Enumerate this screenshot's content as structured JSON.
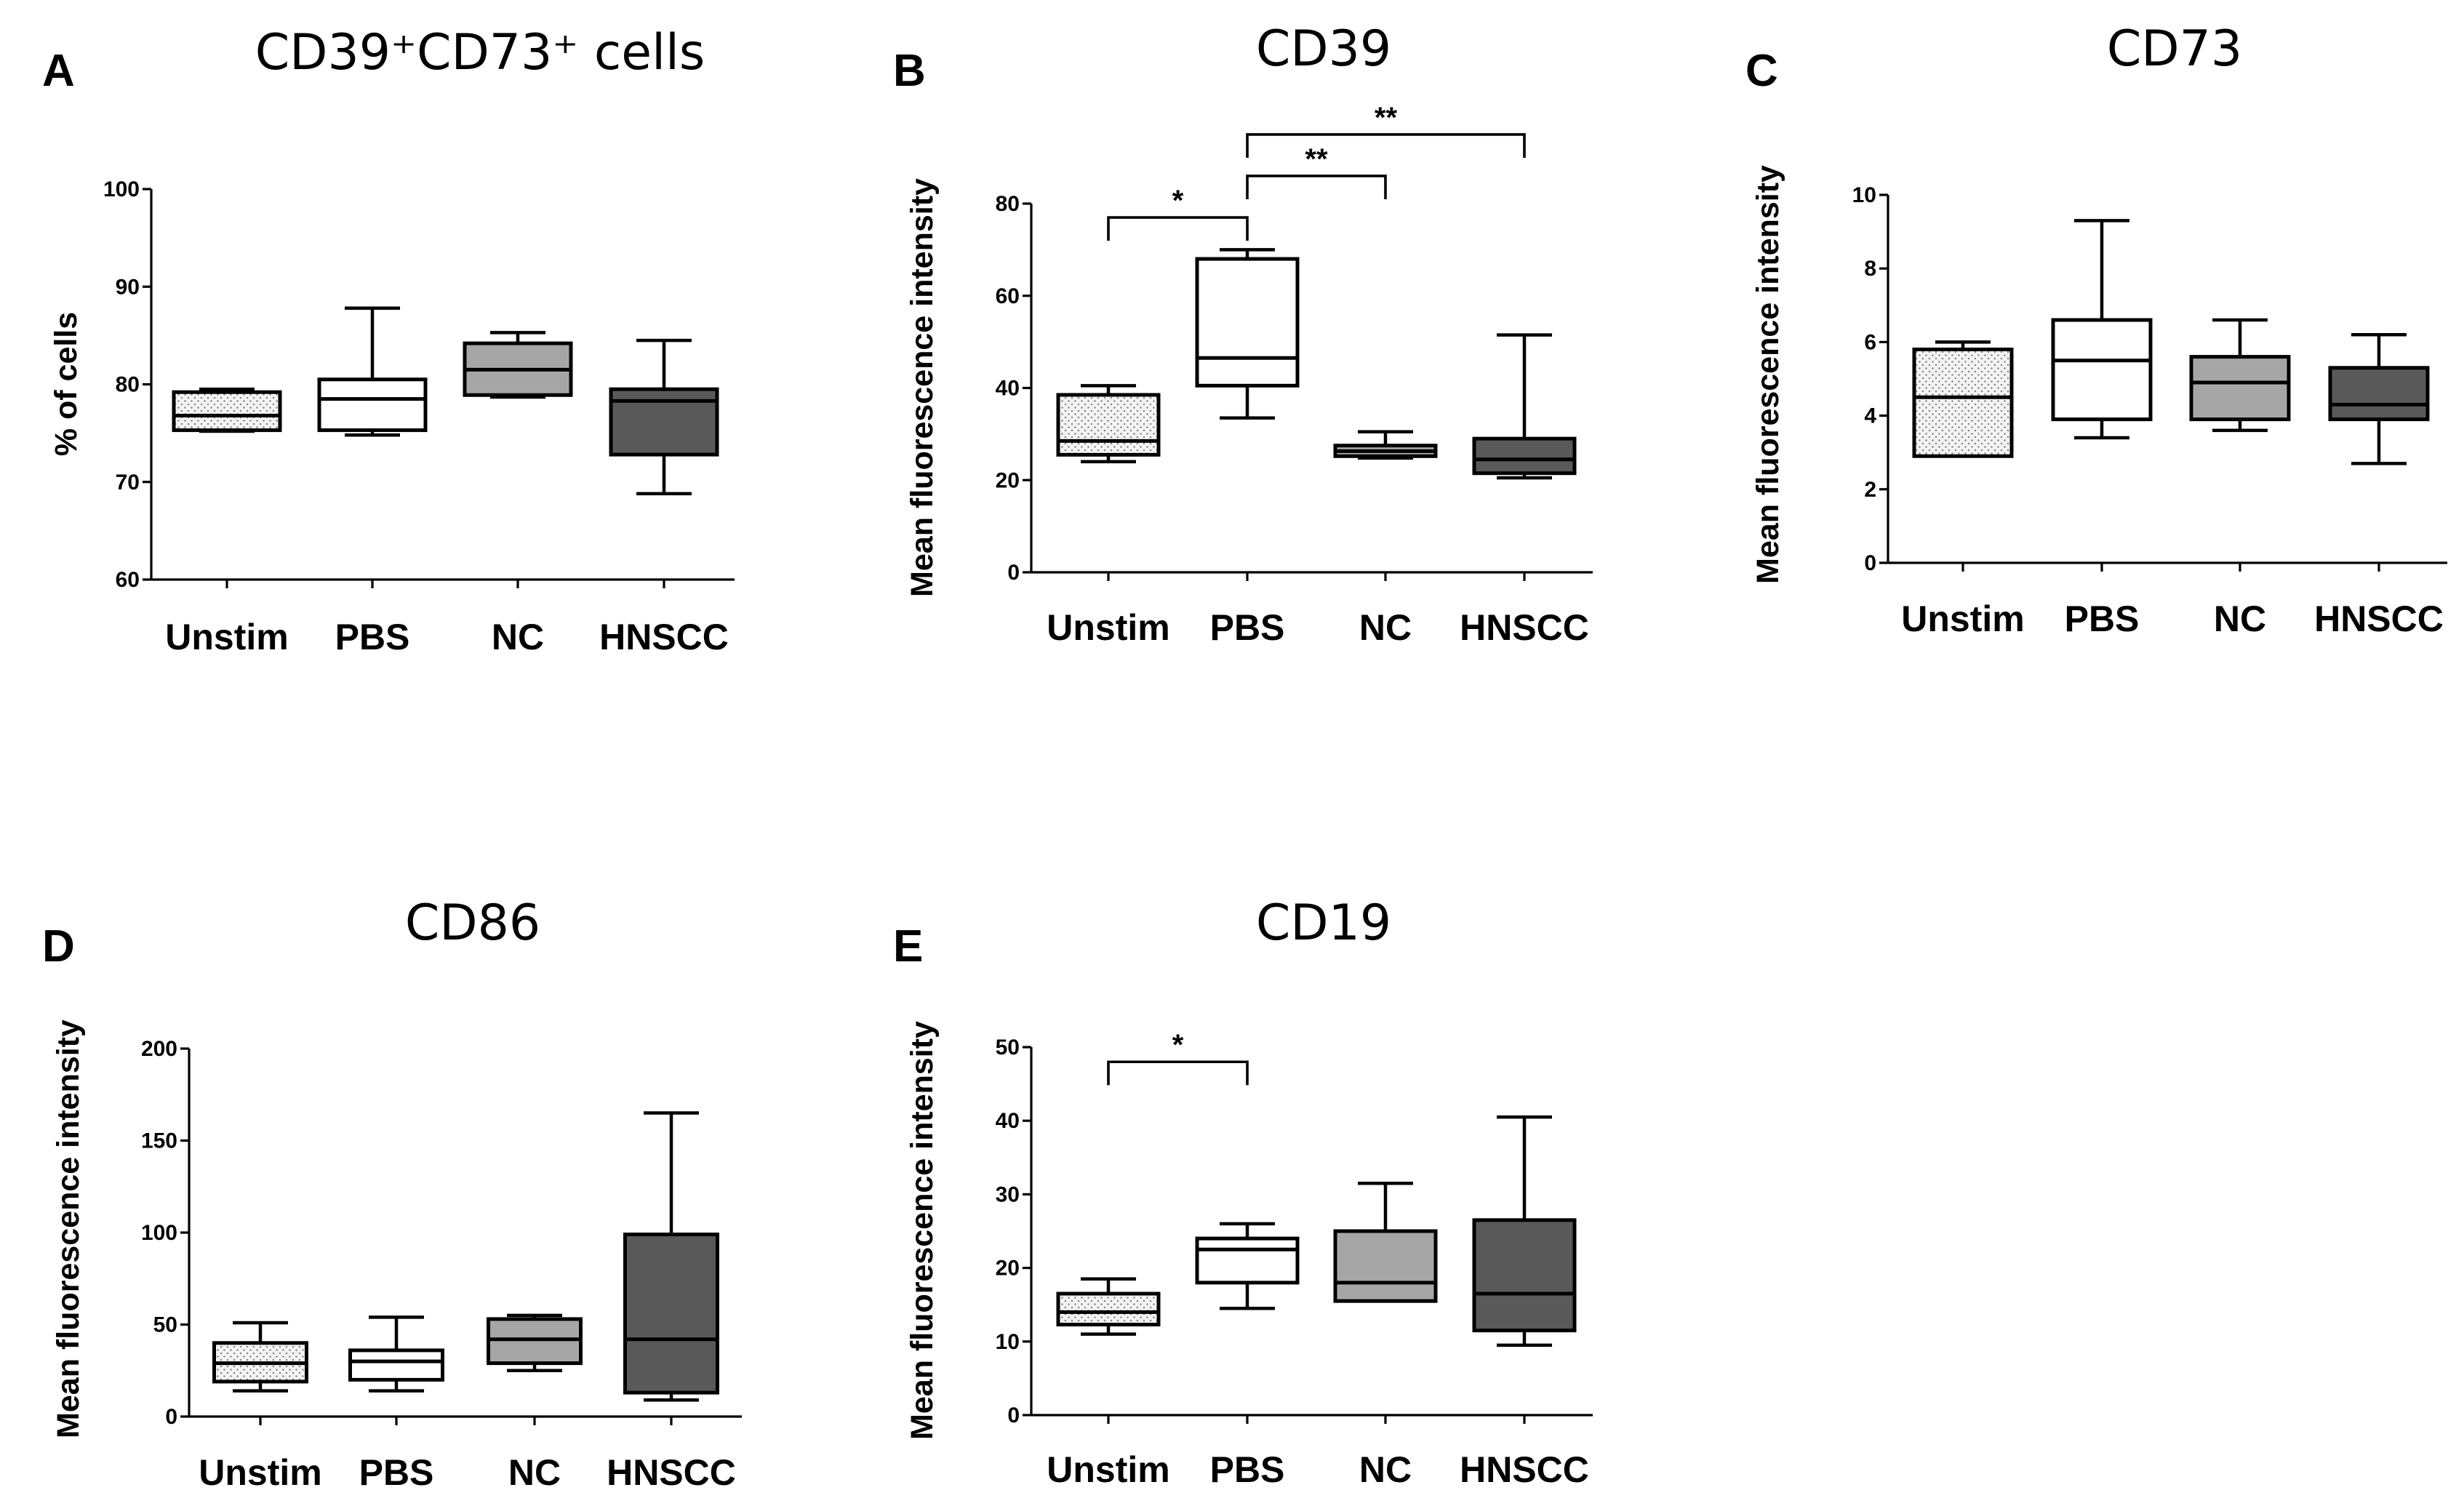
{
  "fill_colors": {
    "Unstim": "dotted",
    "PBS": "#ffffff",
    "NC": "#a6a6a6",
    "HNSCC": "#595959"
  },
  "chart_data": [
    {
      "type": "box",
      "panel": "A",
      "title": "CD39⁺CD73⁺ cells",
      "ylabel": "% of cells",
      "ylim": [
        60,
        100
      ],
      "yticks": [
        60,
        70,
        80,
        90,
        100
      ],
      "categories": [
        "Unstim",
        "PBS",
        "NC",
        "HNSCC"
      ],
      "boxes": [
        {
          "min": 75.2,
          "q1": 75.3,
          "median": 76.8,
          "q3": 79.2,
          "max": 79.5
        },
        {
          "min": 74.8,
          "q1": 75.3,
          "median": 78.5,
          "q3": 80.5,
          "max": 87.8
        },
        {
          "min": 78.7,
          "q1": 78.9,
          "median": 81.5,
          "q3": 84.2,
          "max": 85.3
        },
        {
          "min": 68.8,
          "q1": 72.8,
          "median": 78.3,
          "q3": 79.5,
          "max": 84.5
        }
      ],
      "significance": []
    },
    {
      "type": "box",
      "panel": "B",
      "title": "CD39",
      "ylabel": "Mean fluorescence intensity",
      "ylim": [
        0,
        80
      ],
      "yticks": [
        0,
        20,
        40,
        60,
        80
      ],
      "categories": [
        "Unstim",
        "PBS",
        "NC",
        "HNSCC"
      ],
      "boxes": [
        {
          "min": 24.0,
          "q1": 25.5,
          "median": 28.5,
          "q3": 38.5,
          "max": 40.5
        },
        {
          "min": 33.5,
          "q1": 40.5,
          "median": 46.5,
          "q3": 68.0,
          "max": 70.0
        },
        {
          "min": 24.8,
          "q1": 25.2,
          "median": 26.3,
          "q3": 27.5,
          "max": 30.5
        },
        {
          "min": 20.5,
          "q1": 21.5,
          "median": 24.5,
          "q3": 29.0,
          "max": 51.5
        }
      ],
      "significance": [
        {
          "from": 0,
          "to": 1,
          "label": "*",
          "level": 77
        },
        {
          "from": 1,
          "to": 2,
          "label": "**",
          "level": 86
        },
        {
          "from": 1,
          "to": 3,
          "label": "**",
          "level": 95
        }
      ]
    },
    {
      "type": "box",
      "panel": "C",
      "title": "CD73",
      "ylabel": "Mean fluorescence intensity",
      "ylim": [
        0,
        10
      ],
      "yticks": [
        0,
        2,
        4,
        6,
        8,
        10
      ],
      "categories": [
        "Unstim",
        "PBS",
        "NC",
        "HNSCC"
      ],
      "boxes": [
        {
          "min": 2.9,
          "q1": 2.9,
          "median": 4.5,
          "q3": 5.8,
          "max": 6.0
        },
        {
          "min": 3.4,
          "q1": 3.9,
          "median": 5.5,
          "q3": 6.6,
          "max": 9.3
        },
        {
          "min": 3.6,
          "q1": 3.9,
          "median": 4.9,
          "q3": 5.6,
          "max": 6.6
        },
        {
          "min": 2.7,
          "q1": 3.9,
          "median": 4.3,
          "q3": 5.3,
          "max": 6.2
        }
      ],
      "significance": []
    },
    {
      "type": "box",
      "panel": "D",
      "title": "CD86",
      "ylabel": "Mean fluorescence intensity",
      "ylim": [
        0,
        200
      ],
      "yticks": [
        0,
        50,
        100,
        150,
        200
      ],
      "categories": [
        "Unstim",
        "PBS",
        "NC",
        "HNSCC"
      ],
      "boxes": [
        {
          "min": 14,
          "q1": 19,
          "median": 29,
          "q3": 40,
          "max": 51
        },
        {
          "min": 14,
          "q1": 20,
          "median": 30,
          "q3": 36,
          "max": 54
        },
        {
          "min": 25,
          "q1": 29,
          "median": 42,
          "q3": 53,
          "max": 55
        },
        {
          "min": 9,
          "q1": 13,
          "median": 42,
          "q3": 99,
          "max": 165
        }
      ],
      "significance": []
    },
    {
      "type": "box",
      "panel": "E",
      "title": "CD19",
      "ylabel": "Mean fluorescence intensity",
      "ylim": [
        0,
        50
      ],
      "yticks": [
        0,
        10,
        20,
        30,
        40,
        50
      ],
      "categories": [
        "Unstim",
        "PBS",
        "NC",
        "HNSCC"
      ],
      "boxes": [
        {
          "min": 11.0,
          "q1": 12.3,
          "median": 14.0,
          "q3": 16.5,
          "max": 18.5
        },
        {
          "min": 14.5,
          "q1": 18.0,
          "median": 22.5,
          "q3": 24.0,
          "max": 26.0
        },
        {
          "min": 15.5,
          "q1": 15.5,
          "median": 18.0,
          "q3": 25.0,
          "max": 31.5
        },
        {
          "min": 9.5,
          "q1": 11.5,
          "median": 16.5,
          "q3": 26.5,
          "max": 40.5
        }
      ],
      "significance": [
        {
          "from": 0,
          "to": 1,
          "label": "*",
          "level": 48
        }
      ]
    }
  ]
}
